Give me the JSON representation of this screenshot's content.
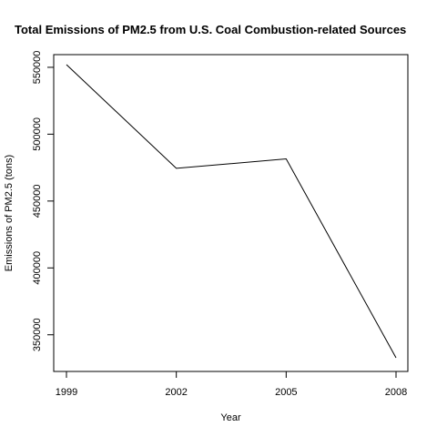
{
  "chart_data": {
    "type": "line",
    "title": "Total Emissions of PM2.5 from U.S. Coal Combustion-related Sources",
    "xlabel": "Year",
    "ylabel": "Emissions of PM2.5 (tons)",
    "x": [
      1999,
      2002,
      2005,
      2008
    ],
    "series": [
      {
        "values": [
          552000,
          474500,
          481500,
          332800
        ]
      }
    ],
    "xticks": [
      "1999",
      "2002",
      "2005",
      "2008"
    ],
    "yticks": [
      "350000",
      "400000",
      "450000",
      "500000",
      "550000"
    ],
    "xlim": [
      1999,
      2008
    ],
    "ylim": [
      332800,
      552000
    ],
    "grid": false,
    "line_color": "#000000"
  }
}
